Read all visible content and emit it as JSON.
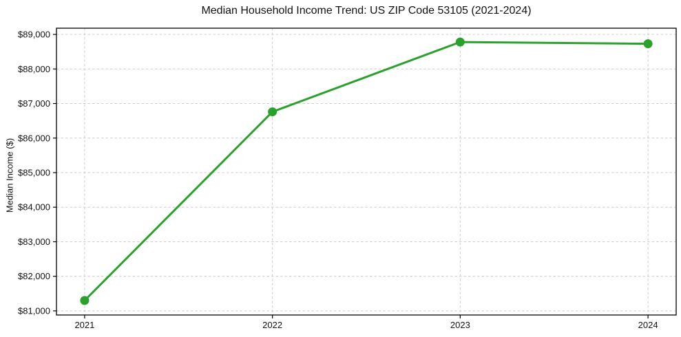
{
  "page": {
    "background": "#ffffff"
  },
  "colors": {
    "accent": "#2ca02c",
    "grid": "#cccccc",
    "axis": "#000000",
    "text": "#111111"
  },
  "chart_data": {
    "type": "line",
    "title": "Median Household Income Trend: US ZIP Code 53105 (2021-2024)",
    "xlabel": "",
    "ylabel": "Median Income ($)",
    "x": [
      2021,
      2022,
      2023,
      2024
    ],
    "series": [
      {
        "name": "Median household income",
        "color": "#2ca02c",
        "marker": "circle",
        "values": [
          81300,
          86760,
          88780,
          88730
        ]
      }
    ],
    "xlim": [
      2020.85,
      2024.15
    ],
    "ylim": [
      80880,
      89180
    ],
    "grid": true,
    "legend": false,
    "xticks": [
      {
        "value": 2021,
        "label": "2021"
      },
      {
        "value": 2022,
        "label": "2022"
      },
      {
        "value": 2023,
        "label": "2023"
      },
      {
        "value": 2024,
        "label": "2024"
      }
    ],
    "yticks": [
      {
        "value": 81000,
        "label": "$81,000"
      },
      {
        "value": 82000,
        "label": "$82,000"
      },
      {
        "value": 83000,
        "label": "$83,000"
      },
      {
        "value": 84000,
        "label": "$84,000"
      },
      {
        "value": 85000,
        "label": "$85,000"
      },
      {
        "value": 86000,
        "label": "$86,000"
      },
      {
        "value": 87000,
        "label": "$87,000"
      },
      {
        "value": 88000,
        "label": "$88,000"
      },
      {
        "value": 89000,
        "label": "$89,000"
      }
    ]
  }
}
